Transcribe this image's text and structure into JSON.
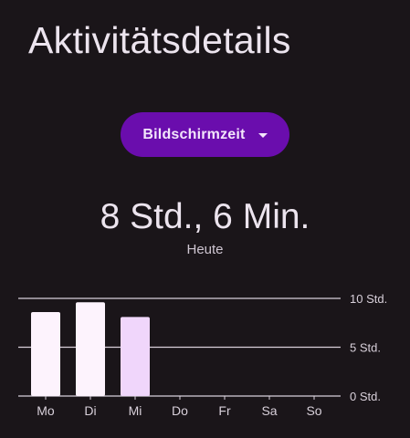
{
  "header": {
    "title": "Aktivitätsdetails"
  },
  "selector": {
    "label": "Bildschirmzeit",
    "icon": "caret-down-icon",
    "color": "#6a0dad"
  },
  "summary": {
    "total": "8 Std., 6 Min.",
    "period": "Heute"
  },
  "chart_data": {
    "type": "bar",
    "categories": [
      "Mo",
      "Di",
      "Mi",
      "Do",
      "Fr",
      "Sa",
      "So"
    ],
    "values": [
      8.6,
      9.6,
      8.1,
      0,
      0,
      0,
      0
    ],
    "highlighted_index": 2,
    "ylim": [
      0,
      10
    ],
    "yticks": [
      0,
      5,
      10
    ],
    "ytick_labels": [
      "0 Std.",
      "5 Std.",
      "10 Std."
    ],
    "grid": true,
    "bar_color": "#fdf3fd",
    "highlight_color": "#f0d6fb"
  }
}
